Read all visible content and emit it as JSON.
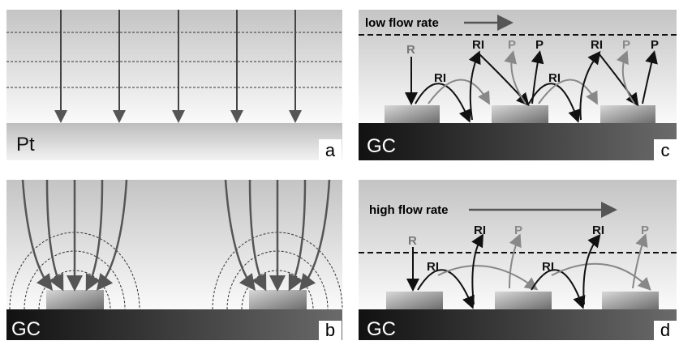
{
  "panels": [
    {
      "label": "a",
      "substrate": "Pt"
    },
    {
      "label": "b",
      "substrate": "GC"
    },
    {
      "label": "c",
      "substrate": "GC",
      "flow": "low flow rate",
      "species": [
        "R",
        "RI",
        "P",
        "P",
        "RI",
        "RI",
        "P",
        "P",
        "RI"
      ]
    },
    {
      "label": "d",
      "substrate": "GC",
      "flow": "high flow rate",
      "species": [
        "R",
        "RI",
        "P",
        "RI",
        "P",
        "RI",
        "RI"
      ]
    }
  ]
}
